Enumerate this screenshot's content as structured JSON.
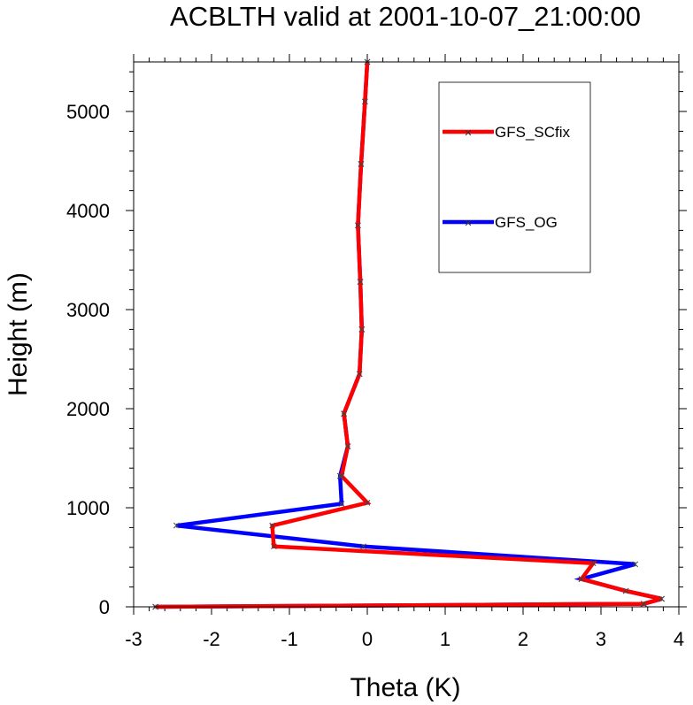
{
  "chart_data": {
    "type": "line",
    "title": "ACBLTH valid at 2001-10-07_21:00:00",
    "xlabel": "Theta (K)",
    "ylabel": "Height (m)",
    "xlim": [
      -3,
      4
    ],
    "ylim": [
      0,
      5500
    ],
    "x_ticks": [
      "-3",
      "-2",
      "-1",
      "0",
      "1",
      "2",
      "3",
      "4"
    ],
    "y_ticks": [
      "0",
      "1000",
      "2000",
      "3000",
      "4000",
      "5000"
    ],
    "legend_position": "top-right",
    "series": [
      {
        "name": "GFS_SCfix",
        "color": "#ff0000",
        "x": [
          -2.72,
          3.55,
          3.78,
          3.32,
          2.75,
          2.9,
          -1.2,
          -1.22,
          0.0,
          -0.33,
          -0.25,
          -0.3,
          -0.1,
          -0.07,
          -0.09,
          -0.12,
          -0.08,
          -0.03,
          0.0
        ],
        "y": [
          0,
          30,
          80,
          160,
          280,
          440,
          610,
          820,
          1050,
          1320,
          1620,
          1950,
          2350,
          2800,
          3280,
          3850,
          4470,
          5100,
          5500
        ]
      },
      {
        "name": "GFS_OG",
        "color": "#0000ff",
        "x": [
          -2.72,
          3.55,
          3.78,
          3.32,
          2.75,
          3.44,
          -0.05,
          -2.45,
          -0.33,
          -0.35,
          -0.25,
          -0.3,
          -0.1,
          -0.07,
          -0.09,
          -0.12,
          -0.08,
          -0.03,
          0.0
        ],
        "y": [
          0,
          30,
          80,
          160,
          280,
          430,
          610,
          820,
          1040,
          1320,
          1620,
          1950,
          2350,
          2800,
          3280,
          3850,
          4470,
          5100,
          5500
        ]
      }
    ]
  }
}
